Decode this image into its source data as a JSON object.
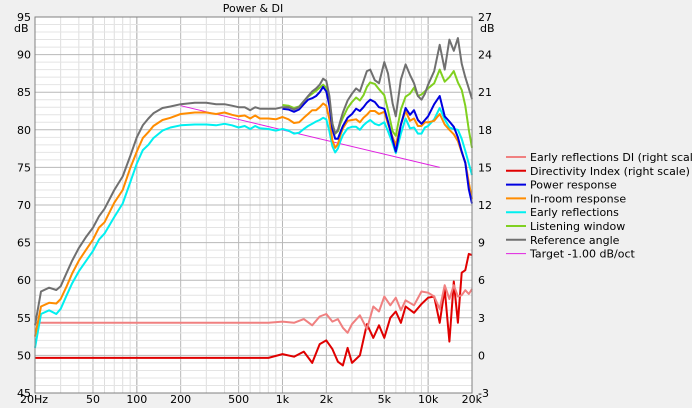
{
  "chart_data": {
    "type": "line",
    "title": "Power & DI",
    "left_unit": "dB",
    "right_unit": "dB",
    "x_scale": "log",
    "xlim": [
      20,
      20000
    ],
    "ylim_left": [
      45,
      95
    ],
    "ylim_right": [
      -3,
      27
    ],
    "grid": true,
    "legend_position": "right",
    "x_ticks": [
      {
        "value": 20,
        "label": "20Hz"
      },
      {
        "value": 50,
        "label": "50"
      },
      {
        "value": 100,
        "label": "100"
      },
      {
        "value": 200,
        "label": "200"
      },
      {
        "value": 500,
        "label": "500"
      },
      {
        "value": 1000,
        "label": "1k"
      },
      {
        "value": 2000,
        "label": "2k"
      },
      {
        "value": 5000,
        "label": "5k"
      },
      {
        "value": 10000,
        "label": "10k"
      },
      {
        "value": 20000,
        "label": "20k"
      }
    ],
    "y_ticks_left": [
      "95",
      "90",
      "85",
      "80",
      "75",
      "70",
      "65",
      "60",
      "55",
      "50",
      "45"
    ],
    "y_ticks_right": [
      "27",
      "24",
      "21",
      "18",
      "15",
      "12",
      "9",
      "6",
      "3",
      "0",
      "-3"
    ],
    "series": [
      {
        "name": "Early reflections DI (right scale)",
        "axis": "right",
        "color": "#f08080",
        "x": [
          20,
          50,
          100,
          200,
          500,
          800,
          1000,
          1200,
          1400,
          1600,
          1800,
          2000,
          2200,
          2400,
          2600,
          2800,
          3000,
          3400,
          3800,
          4200,
          4600,
          5000,
          5500,
          6000,
          6500,
          7000,
          8000,
          9000,
          10000,
          11000,
          12000,
          13000,
          14000,
          15000,
          16000,
          17000,
          18000,
          19000,
          20000
        ],
        "y": [
          2.6,
          2.6,
          2.6,
          2.6,
          2.6,
          2.6,
          2.7,
          2.6,
          2.9,
          2.4,
          3.1,
          3.3,
          2.7,
          2.9,
          2.2,
          1.8,
          2.5,
          3.2,
          2.1,
          3.9,
          3.5,
          4.7,
          4.0,
          4.6,
          3.6,
          4.4,
          4.0,
          5.1,
          5.0,
          4.7,
          3.7,
          5.6,
          4.5,
          5.6,
          4.7,
          4.8,
          5.2,
          4.9,
          5.3
        ]
      },
      {
        "name": "Directivity Index (right scale)",
        "axis": "right",
        "color": "#e00000",
        "x": [
          20,
          50,
          100,
          200,
          500,
          800,
          1000,
          1200,
          1400,
          1600,
          1800,
          2000,
          2200,
          2400,
          2600,
          2800,
          3000,
          3400,
          3800,
          4200,
          4600,
          5000,
          5500,
          6000,
          6500,
          7000,
          8000,
          9000,
          10000,
          11000,
          12000,
          13000,
          14000,
          15000,
          16000,
          17000,
          18000,
          19000,
          20000
        ],
        "y": [
          -0.2,
          -0.2,
          -0.2,
          -0.2,
          -0.2,
          -0.2,
          0.1,
          -0.1,
          0.3,
          -0.6,
          0.9,
          1.2,
          0.5,
          -0.5,
          -0.8,
          0.6,
          -0.6,
          0.0,
          2.5,
          1.4,
          2.4,
          1.4,
          3.0,
          3.5,
          2.6,
          3.9,
          3.4,
          4.1,
          4.6,
          4.7,
          2.6,
          5.3,
          1.1,
          5.9,
          2.6,
          6.6,
          6.8,
          8.1,
          8.0
        ]
      },
      {
        "name": "Power response",
        "axis": "left",
        "color": "#0000e0",
        "x": [
          1000,
          1100,
          1200,
          1300,
          1400,
          1500,
          1600,
          1700,
          1800,
          1900,
          2000,
          2100,
          2200,
          2300,
          2400,
          2500,
          2600,
          2800,
          3000,
          3200,
          3400,
          3600,
          3800,
          4000,
          4300,
          4600,
          5000,
          5300,
          5700,
          6000,
          6500,
          7000,
          7500,
          8000,
          8500,
          9000,
          9500,
          10000,
          11000,
          12000,
          13000,
          14000,
          15000,
          16000,
          17000,
          18000,
          19000,
          20000
        ],
        "y": [
          82.8,
          82.7,
          82.4,
          82.7,
          83.4,
          84.0,
          84.2,
          84.5,
          85.0,
          85.7,
          85.1,
          83.2,
          80.1,
          78.8,
          78.8,
          79.7,
          80.5,
          81.6,
          82.1,
          82.8,
          82.5,
          83.0,
          83.6,
          84.0,
          83.7,
          83.0,
          82.8,
          81.1,
          78.7,
          77.1,
          80.7,
          82.9,
          82.0,
          82.6,
          81.3,
          80.8,
          81.3,
          81.8,
          83.4,
          84.5,
          81.8,
          81.1,
          80.4,
          79.0,
          77.1,
          75.6,
          72.1,
          70.2
        ]
      },
      {
        "name": "In-room response",
        "axis": "left",
        "color": "#ff8c00",
        "x": [
          20,
          22,
          25,
          28,
          30,
          33,
          36,
          40,
          45,
          50,
          55,
          60,
          70,
          80,
          90,
          100,
          110,
          120,
          130,
          150,
          170,
          200,
          250,
          300,
          350,
          400,
          450,
          500,
          550,
          600,
          650,
          700,
          800,
          900,
          1000,
          1100,
          1200,
          1300,
          1400,
          1500,
          1600,
          1700,
          1800,
          1900,
          2000,
          2100,
          2200,
          2300,
          2400,
          2500,
          2600,
          2800,
          3000,
          3200,
          3400,
          3600,
          3800,
          4000,
          4300,
          4600,
          5000,
          5300,
          5700,
          6000,
          6500,
          7000,
          7500,
          8000,
          8500,
          9000,
          9500,
          10000,
          11000,
          12000,
          13000,
          14000,
          15000,
          16000,
          17000,
          18000,
          19000,
          20000
        ],
        "y": [
          52.5,
          56.5,
          57.0,
          56.9,
          57.5,
          59.2,
          60.9,
          62.6,
          64.1,
          65.4,
          67.0,
          67.7,
          70.3,
          72.0,
          74.9,
          77.1,
          78.9,
          79.7,
          80.5,
          81.3,
          81.6,
          82.1,
          82.3,
          82.3,
          82.1,
          82.3,
          82.0,
          81.8,
          81.9,
          81.5,
          81.9,
          81.5,
          81.5,
          81.4,
          81.7,
          81.4,
          80.9,
          81.0,
          81.6,
          82.1,
          82.6,
          82.6,
          83.0,
          83.5,
          83.2,
          81.4,
          78.6,
          77.6,
          78.1,
          79.3,
          80.2,
          81.2,
          81.3,
          81.4,
          81.0,
          81.6,
          82.0,
          82.5,
          82.5,
          82.1,
          82.4,
          80.8,
          79.0,
          78.0,
          80.7,
          82.5,
          81.2,
          81.5,
          80.5,
          80.5,
          81.0,
          81.0,
          81.2,
          82.1,
          80.7,
          80.0,
          79.4,
          78.5,
          77.0,
          75.7,
          73.0,
          70.8
        ]
      },
      {
        "name": "Early reflections",
        "axis": "left",
        "color": "#00f0f0",
        "x": [
          20,
          22,
          25,
          28,
          30,
          33,
          36,
          40,
          45,
          50,
          55,
          60,
          70,
          80,
          90,
          100,
          110,
          120,
          130,
          150,
          170,
          200,
          250,
          300,
          350,
          400,
          450,
          500,
          550,
          600,
          650,
          700,
          800,
          900,
          1000,
          1100,
          1200,
          1300,
          1400,
          1500,
          1600,
          1700,
          1800,
          1900,
          2000,
          2100,
          2200,
          2300,
          2400,
          2500,
          2600,
          2800,
          3000,
          3200,
          3400,
          3600,
          3800,
          4000,
          4300,
          4600,
          5000,
          5300,
          5700,
          6000,
          6500,
          7000,
          7500,
          8000,
          8500,
          9000,
          9500,
          10000,
          11000,
          12000,
          13000,
          14000,
          15000,
          16000,
          17000,
          18000,
          19000,
          20000
        ],
        "y": [
          51.0,
          55.5,
          56.0,
          55.5,
          56.2,
          58.0,
          59.6,
          61.2,
          62.6,
          63.9,
          65.4,
          66.2,
          68.4,
          70.2,
          73.0,
          75.5,
          77.3,
          78.0,
          78.9,
          79.9,
          80.3,
          80.6,
          80.7,
          80.7,
          80.6,
          80.8,
          80.6,
          80.3,
          80.5,
          80.1,
          80.5,
          80.2,
          80.1,
          79.9,
          80.1,
          79.9,
          79.5,
          79.6,
          80.1,
          80.5,
          80.8,
          81.1,
          81.3,
          81.6,
          81.4,
          79.8,
          77.8,
          77.0,
          77.5,
          78.5,
          79.3,
          80.2,
          80.4,
          80.4,
          80.0,
          80.6,
          81.0,
          81.3,
          80.8,
          80.6,
          81.0,
          79.8,
          78.2,
          76.9,
          79.5,
          81.5,
          80.2,
          80.3,
          79.5,
          79.5,
          80.3,
          80.5,
          81.4,
          82.9,
          81.4,
          80.3,
          80.1,
          80.0,
          78.8,
          77.2,
          75.5,
          74.0
        ]
      },
      {
        "name": "Listening window",
        "axis": "left",
        "color": "#80d020",
        "x": [
          1000,
          1100,
          1200,
          1300,
          1400,
          1500,
          1600,
          1700,
          1800,
          1900,
          2000,
          2100,
          2200,
          2300,
          2400,
          2500,
          2600,
          2800,
          3000,
          3200,
          3400,
          3600,
          3800,
          4000,
          4300,
          4600,
          5000,
          5300,
          5700,
          6000,
          6500,
          7000,
          7500,
          8000,
          8500,
          9000,
          9500,
          10000,
          11000,
          12000,
          13000,
          14000,
          15000,
          16000,
          17000,
          18000,
          19000,
          20000
        ],
        "y": [
          83.3,
          83.2,
          82.9,
          83.1,
          83.8,
          84.4,
          84.8,
          85.2,
          85.6,
          86.0,
          85.6,
          84.0,
          80.8,
          79.5,
          79.8,
          80.8,
          81.6,
          82.9,
          83.7,
          84.3,
          83.9,
          84.6,
          85.7,
          86.3,
          86.1,
          85.4,
          84.6,
          82.6,
          79.8,
          79.2,
          82.7,
          84.4,
          84.8,
          85.6,
          84.5,
          84.7,
          85.1,
          85.5,
          86.2,
          88.0,
          86.4,
          87.0,
          87.8,
          86.3,
          85.3,
          83.2,
          80.0,
          77.6
        ]
      },
      {
        "name": "Reference angle",
        "axis": "left",
        "color": "#707070",
        "x": [
          20,
          22,
          25,
          28,
          30,
          33,
          36,
          40,
          45,
          50,
          55,
          60,
          70,
          80,
          90,
          100,
          110,
          120,
          130,
          150,
          170,
          200,
          250,
          300,
          350,
          400,
          450,
          500,
          550,
          600,
          650,
          700,
          800,
          900,
          1000,
          1100,
          1200,
          1300,
          1400,
          1500,
          1600,
          1700,
          1800,
          1900,
          2000,
          2100,
          2200,
          2300,
          2400,
          2500,
          2600,
          2800,
          3000,
          3200,
          3400,
          3600,
          3800,
          4000,
          4300,
          4600,
          5000,
          5300,
          5700,
          6000,
          6500,
          7000,
          7500,
          8000,
          8500,
          9000,
          9500,
          10000,
          11000,
          12000,
          13000,
          14000,
          15000,
          16000,
          17000,
          18000,
          19000,
          20000
        ],
        "y": [
          54.0,
          58.5,
          59.0,
          58.7,
          59.2,
          61.0,
          62.6,
          64.3,
          65.8,
          67.0,
          68.5,
          69.5,
          72.0,
          73.8,
          76.5,
          79.0,
          80.6,
          81.5,
          82.2,
          82.9,
          83.1,
          83.4,
          83.6,
          83.6,
          83.4,
          83.4,
          83.2,
          83.0,
          83.0,
          82.6,
          83.0,
          82.8,
          82.8,
          82.8,
          83.0,
          83.0,
          82.7,
          83.0,
          83.8,
          84.5,
          85.1,
          85.5,
          86.0,
          86.8,
          86.5,
          84.5,
          80.8,
          79.5,
          80.0,
          81.2,
          82.3,
          83.9,
          84.8,
          85.5,
          85.1,
          86.5,
          87.8,
          88.0,
          86.6,
          86.2,
          89.0,
          87.5,
          83.5,
          81.8,
          86.7,
          88.7,
          87.3,
          86.2,
          84.5,
          84.0,
          84.8,
          86.0,
          87.8,
          91.3,
          88.0,
          92.0,
          90.5,
          92.2,
          88.8,
          87.0,
          85.5,
          84.1
        ]
      },
      {
        "name": "Target -1.00 dB/oct",
        "axis": "left",
        "color": "#e020e0",
        "x": [
          200,
          12000
        ],
        "y": [
          83.2,
          75.0
        ]
      }
    ]
  }
}
